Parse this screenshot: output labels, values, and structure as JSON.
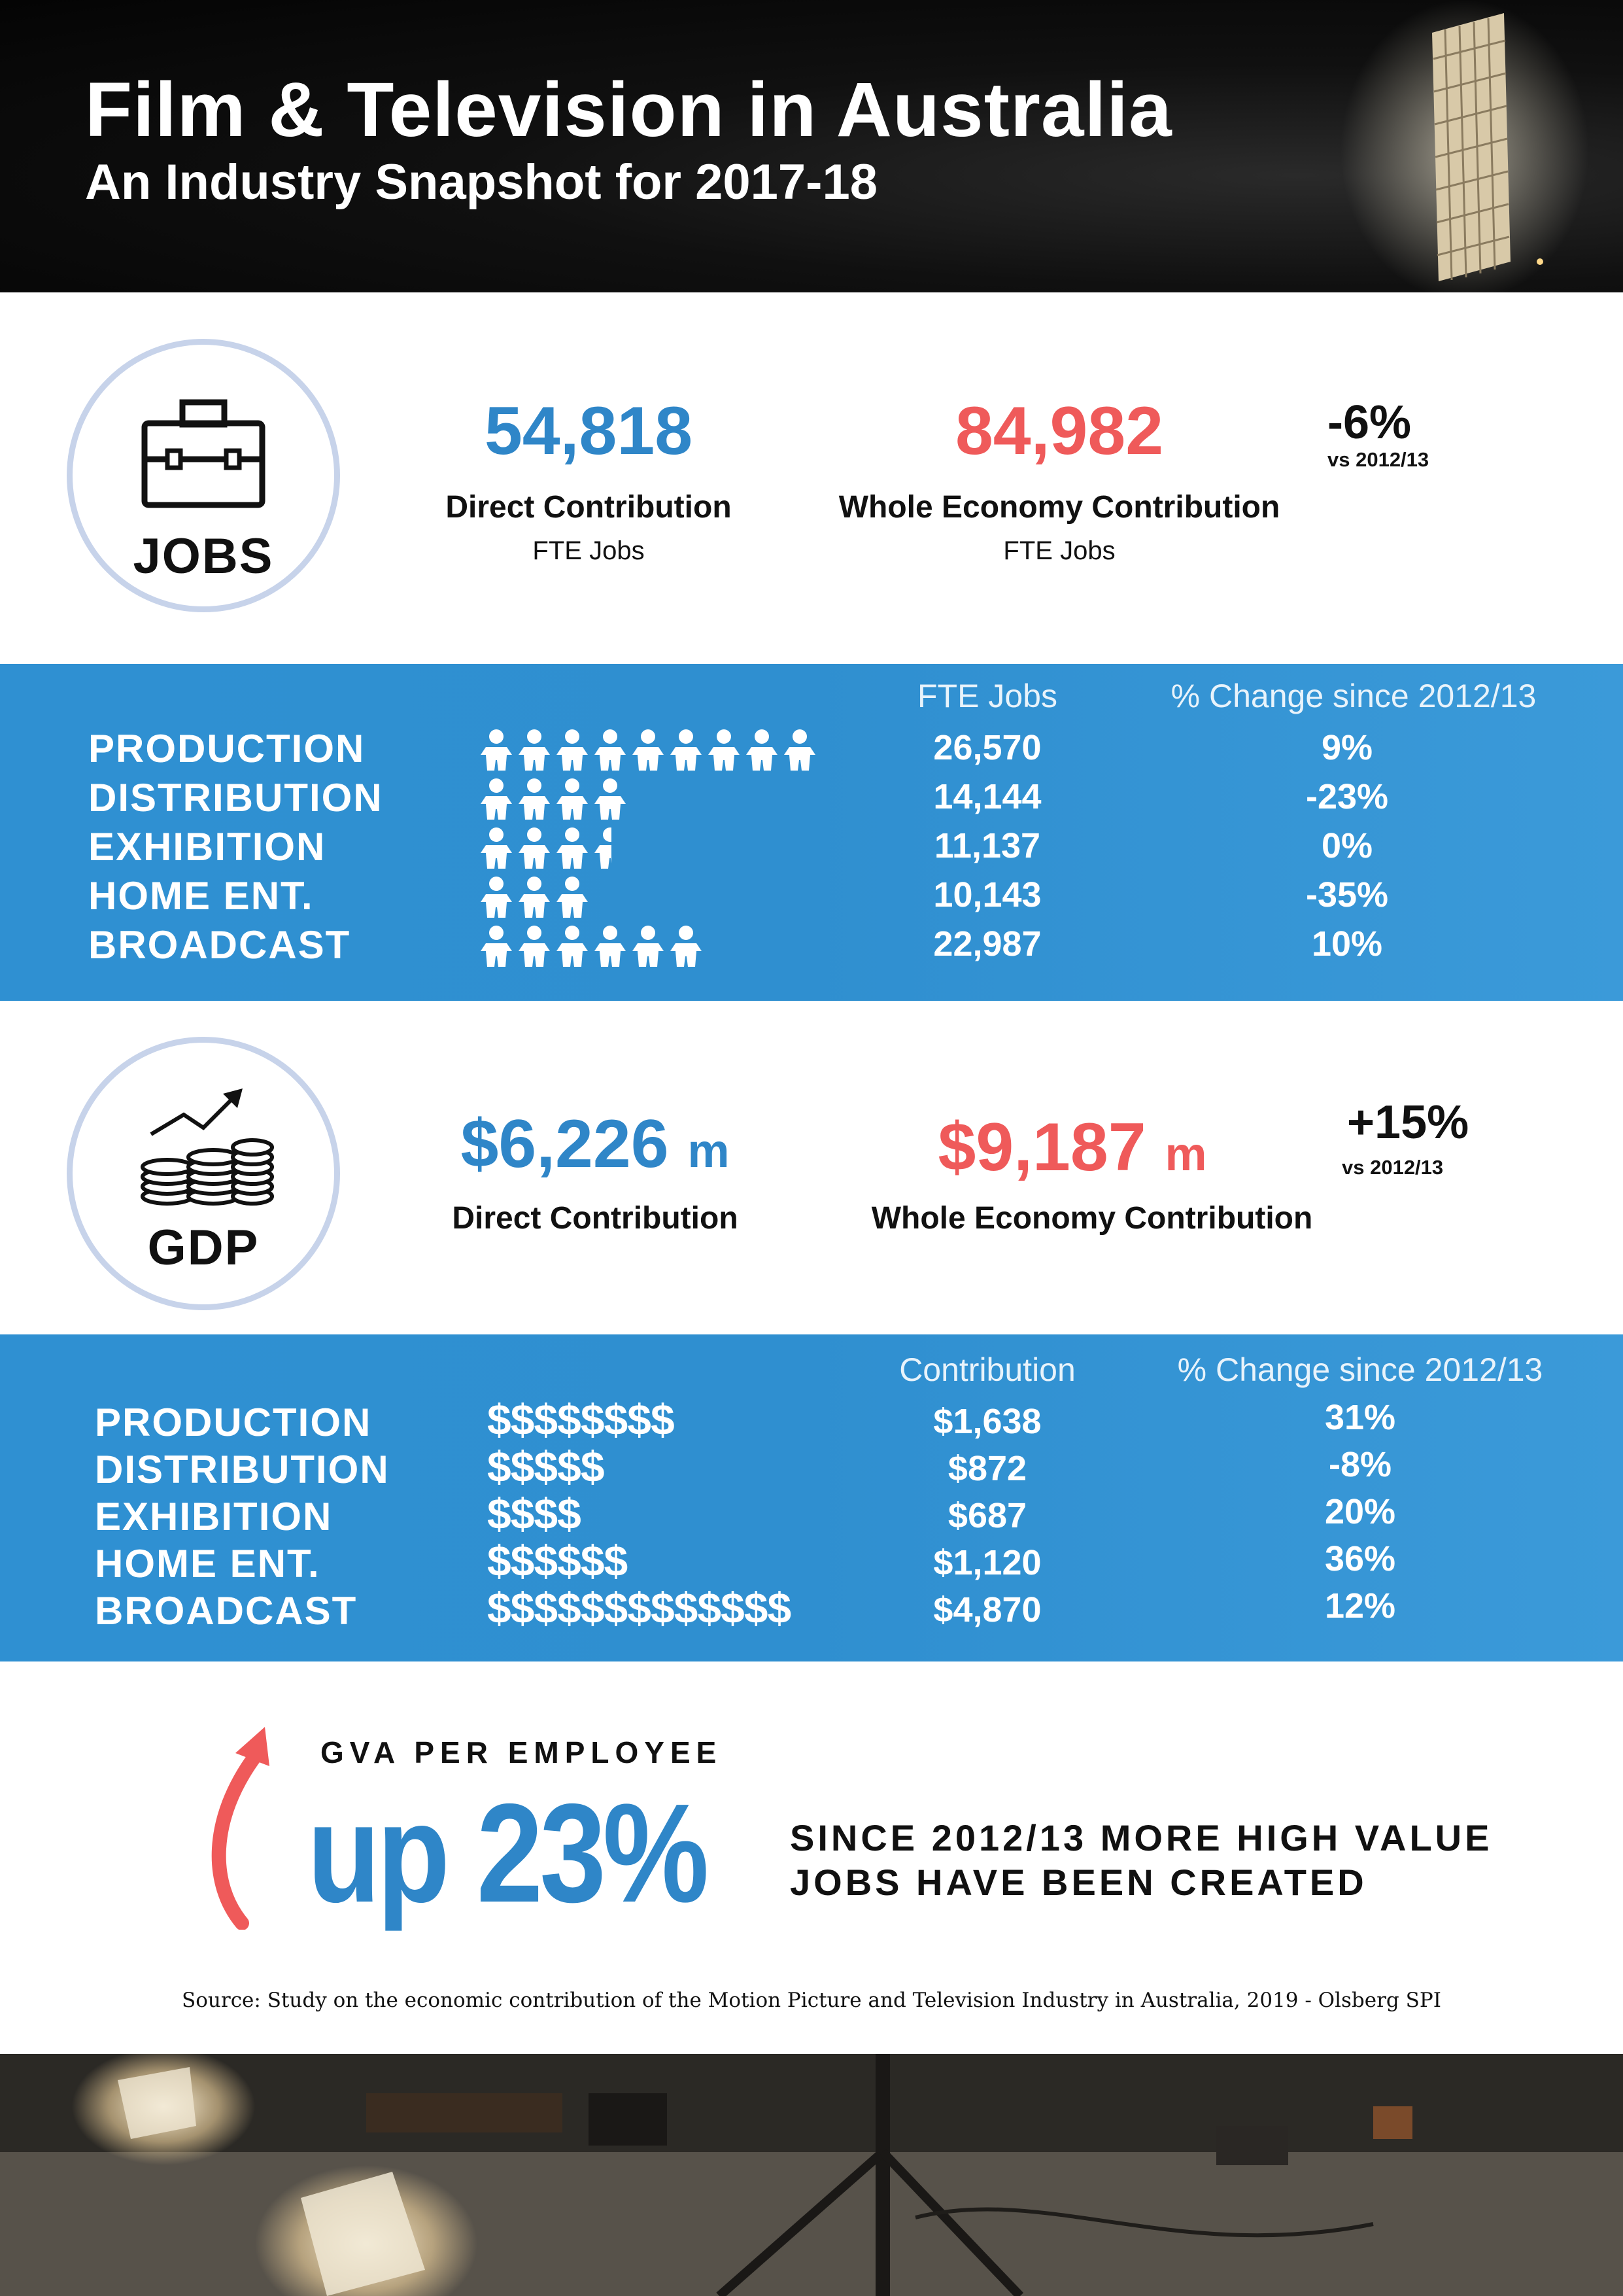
{
  "header": {
    "title": "Film & Television in Australia",
    "subtitle": "An Industry Snapshot for 2017-18"
  },
  "jobs": {
    "icon": "briefcase-icon",
    "circle_label": "JOBS",
    "direct_value": "54,818",
    "direct_label": "Direct Contribution",
    "direct_sub": "FTE Jobs",
    "whole_value": "84,982",
    "whole_label": "Whole Economy Contribution",
    "whole_sub": "FTE Jobs",
    "change": "-6%",
    "change_note": "vs 2012/13",
    "table": {
      "col1": "FTE Jobs",
      "col2": "% Change since 2012/13",
      "rows": [
        {
          "sector": "PRODUCTION",
          "people": 9,
          "value": "26,570",
          "change": "9%"
        },
        {
          "sector": "DISTRIBUTION",
          "people": 4,
          "value": "14,144",
          "change": "-23%"
        },
        {
          "sector": "EXHIBITION",
          "people": 3.5,
          "value": "11,137",
          "change": "0%"
        },
        {
          "sector": "HOME ENT.",
          "people": 3,
          "value": "10,143",
          "change": "-35%"
        },
        {
          "sector": "BROADCAST",
          "people": 6,
          "value": "22,987",
          "change": "10%"
        }
      ]
    }
  },
  "gdp": {
    "icon": "coins-growth-icon",
    "circle_label": "GDP",
    "direct_value": "$6,226",
    "direct_unit": "m",
    "direct_label": "Direct Contribution",
    "whole_value": "$9,187",
    "whole_unit": "m",
    "whole_label": "Whole Economy Contribution",
    "change": "+15%",
    "change_note": "vs 2012/13",
    "table": {
      "col1": "Contribution",
      "col2": "% Change since 2012/13",
      "rows": [
        {
          "sector": "PRODUCTION",
          "dollars": "$$$$$$$$",
          "value": "$1,638",
          "change": "31%"
        },
        {
          "sector": "DISTRIBUTION",
          "dollars": "$$$$$",
          "value": "$872",
          "change": "-8%"
        },
        {
          "sector": "EXHIBITION",
          "dollars": "$$$$",
          "value": "$687",
          "change": "20%"
        },
        {
          "sector": "HOME ENT.",
          "dollars": "$$$$$$",
          "value": "$1,120",
          "change": "36%"
        },
        {
          "sector": "BROADCAST",
          "dollars": "$$$$$$$$$$$$$",
          "value": "$4,870",
          "change": "12%"
        }
      ]
    }
  },
  "gva": {
    "heading": "GVA PER EMPLOYEE",
    "big": "up 23%",
    "line1": "SINCE 2012/13 MORE HIGH VALUE",
    "line2": "JOBS HAVE BEEN CREATED",
    "accent": "#ef5a5a",
    "blue": "#2f86c8"
  },
  "source": "Source: Study on the economic contribution of the Motion Picture and Television Industry in Australia, 2019 - Olsberg SPI"
}
